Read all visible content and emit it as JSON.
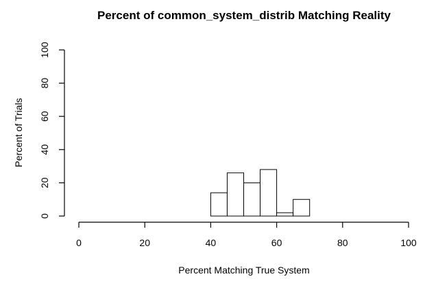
{
  "chart_data": {
    "type": "bar",
    "title": "Percent of common_system_distrib Matching Reality",
    "xlabel": "Percent Matching True System",
    "ylabel": "Percent of Trials",
    "xlim": [
      0,
      100
    ],
    "ylim": [
      0,
      100
    ],
    "x_ticks": [
      0,
      20,
      40,
      60,
      80,
      100
    ],
    "y_ticks": [
      0,
      20,
      40,
      60,
      80,
      100
    ],
    "grid": false,
    "bins": [
      {
        "start": 40,
        "end": 45,
        "value": 14
      },
      {
        "start": 45,
        "end": 50,
        "value": 26
      },
      {
        "start": 50,
        "end": 55,
        "value": 20
      },
      {
        "start": 55,
        "end": 60,
        "value": 28
      },
      {
        "start": 60,
        "end": 65,
        "value": 2
      },
      {
        "start": 65,
        "end": 70,
        "value": 10
      }
    ]
  }
}
